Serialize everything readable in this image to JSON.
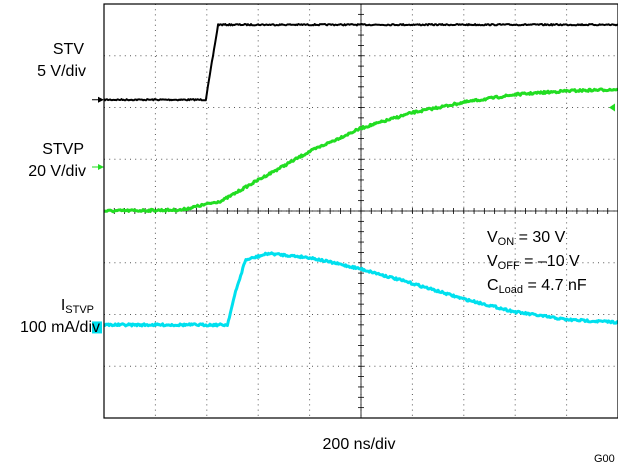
{
  "chart_data": {
    "type": "line",
    "title": "",
    "xlabel": "200 ns/div",
    "ylabel": "",
    "x_divisions": 10,
    "y_divisions": 8,
    "grid": true,
    "channels": [
      {
        "name": "STV",
        "scale": "5 V/div",
        "color": "#000000",
        "marker_color": "#000000",
        "marker_div": 6.15,
        "points": [
          [
            0,
            6.15
          ],
          [
            1.98,
            6.15
          ],
          [
            2.22,
            7.6
          ],
          [
            10,
            7.6
          ]
        ]
      },
      {
        "name": "STVP",
        "scale": "20 V/div",
        "color": "#22dd22",
        "marker_color": "#22dd22",
        "marker_div": 4.85,
        "right_marker_color": "#22dd22",
        "right_marker_div": 6.0,
        "points": [
          [
            0,
            4.0
          ],
          [
            1.5,
            4.02
          ],
          [
            2.3,
            4.2
          ],
          [
            3,
            4.6
          ],
          [
            4,
            5.15
          ],
          [
            5,
            5.6
          ],
          [
            6,
            5.9
          ],
          [
            7,
            6.1
          ],
          [
            8,
            6.25
          ],
          [
            9,
            6.32
          ],
          [
            10,
            6.35
          ]
        ]
      },
      {
        "name": "I_STVP",
        "scale": "100 mA/div",
        "color": "#00e0ee",
        "marker_color": "#00e0ee",
        "marker_div": 1.75,
        "points": [
          [
            0,
            1.8
          ],
          [
            2.4,
            1.8
          ],
          [
            2.55,
            2.4
          ],
          [
            2.75,
            3.05
          ],
          [
            3.2,
            3.18
          ],
          [
            4,
            3.1
          ],
          [
            5,
            2.88
          ],
          [
            6,
            2.6
          ],
          [
            7,
            2.3
          ],
          [
            8,
            2.05
          ],
          [
            9,
            1.9
          ],
          [
            10,
            1.85
          ]
        ]
      }
    ],
    "annotations": {
      "von": {
        "main": "V",
        "sub": "ON",
        "rest": " = 30 V"
      },
      "voff": {
        "main": "V",
        "sub": "OFF",
        "rest": " = –10 V"
      },
      "cload": {
        "main": "C",
        "sub": "Load",
        "rest": " = 4.7 nF"
      }
    },
    "labels": {
      "stv_name": "STV",
      "stv_scale": "5 V/div",
      "stvp_name": "STVP",
      "stvp_scale": "20 V/div",
      "istvp_main": "I",
      "istvp_sub": "STVP",
      "istvp_scale": "100 mA/div"
    },
    "figure_id": "G00"
  }
}
